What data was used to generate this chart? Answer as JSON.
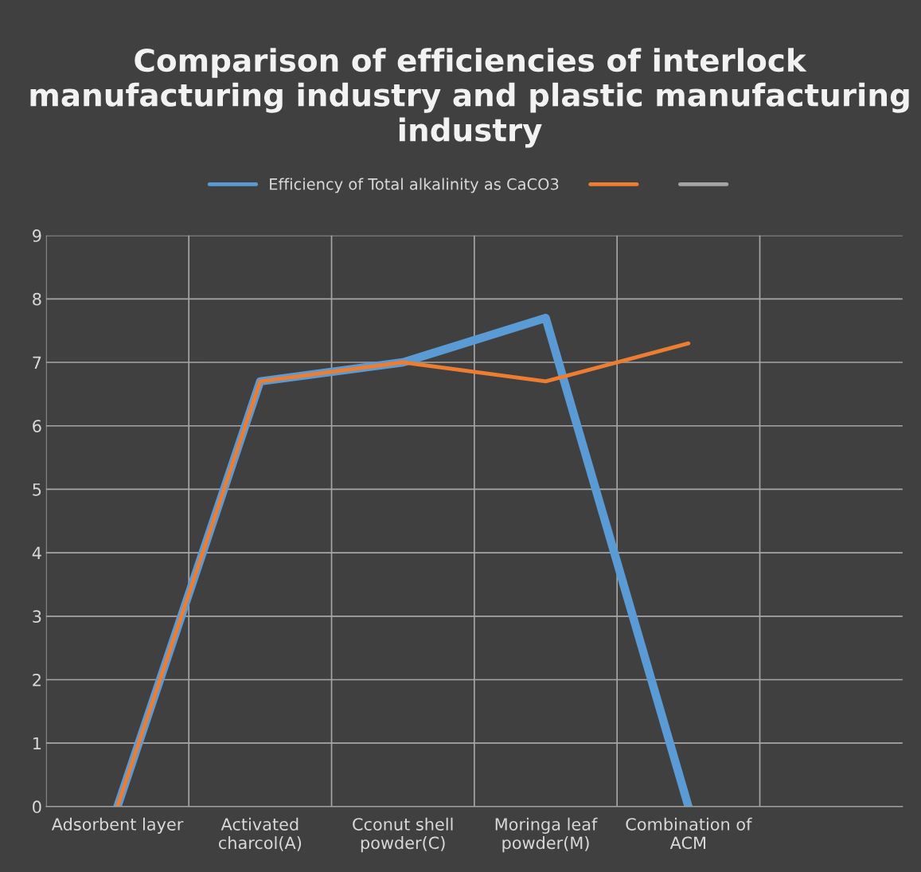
{
  "chart_data": {
    "type": "line",
    "title": "Comparison of efficiencies of interlock manufacturing industry and plastic manufacturing industry",
    "categories": [
      "Adsorbent layer",
      "Activated charcol(A)",
      "Cconut shell powder(C)",
      "Moringa leaf powder(M)",
      "Combination of ACM",
      null
    ],
    "series": [
      {
        "name": "Efficiency of Total alkalinity as CaCO3",
        "color": "#5b9bd5",
        "values": [
          0,
          6.7,
          7.0,
          7.7,
          0,
          null
        ]
      },
      {
        "color": "#ed7d31",
        "values": [
          0,
          6.7,
          7.0,
          6.7,
          7.3,
          null
        ]
      },
      {
        "color": "#a5a5a5",
        "values": [
          null,
          null,
          null,
          null,
          null,
          null
        ]
      }
    ],
    "ylim": [
      0,
      9
    ],
    "yticks": [
      0,
      1,
      2,
      3,
      4,
      5,
      6,
      7,
      8,
      9
    ],
    "grid": true,
    "legend": "top",
    "marker": "none",
    "line_style": "solid"
  }
}
